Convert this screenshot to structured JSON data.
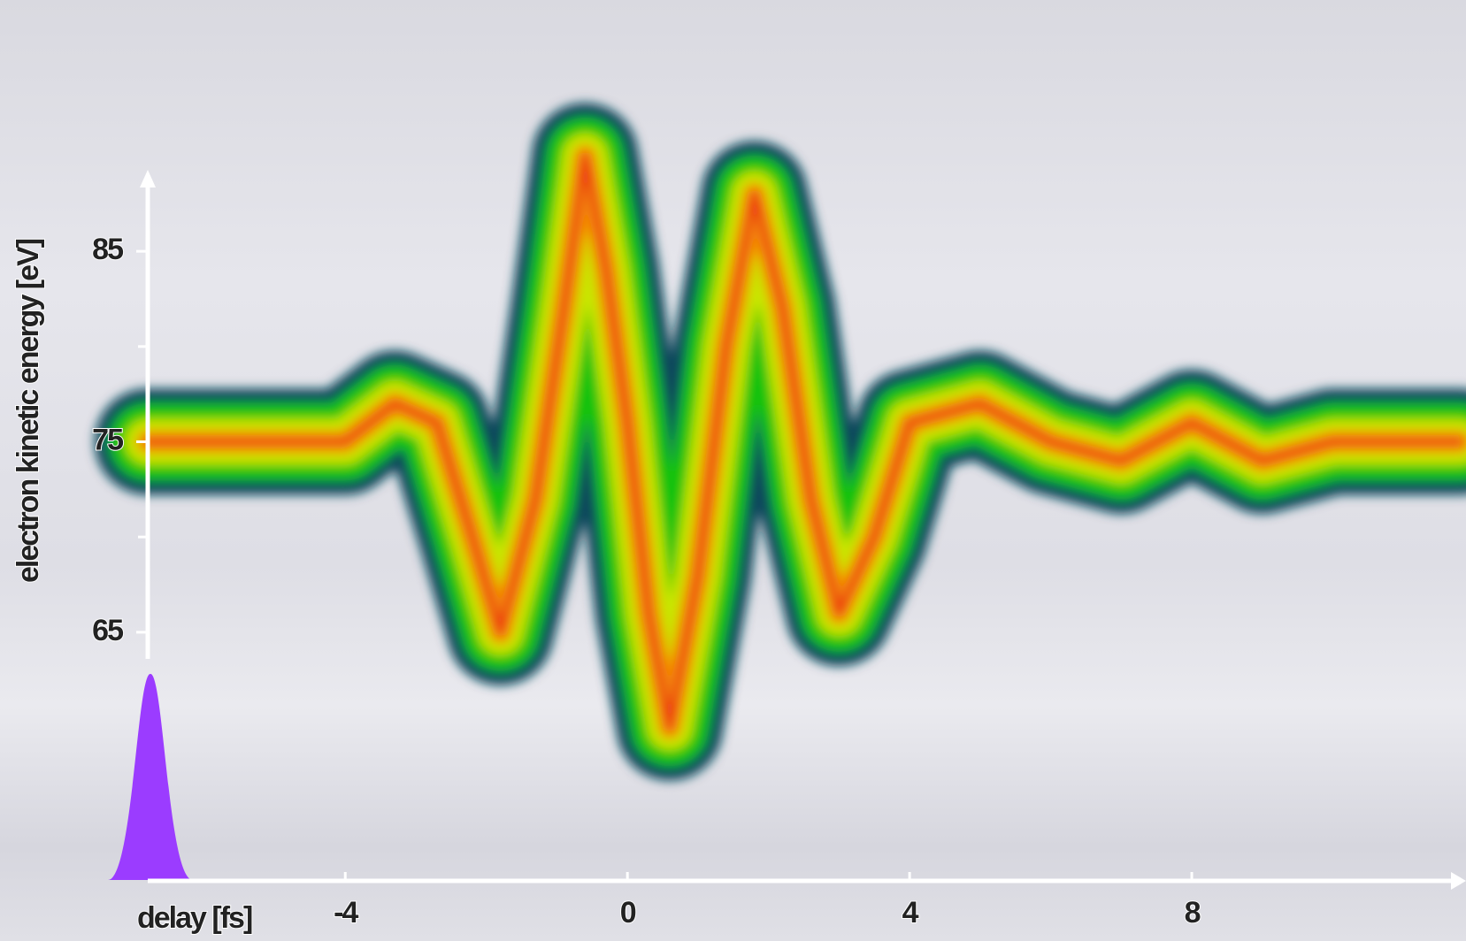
{
  "chart_data": {
    "type": "streak",
    "x_label": "delay [fs]",
    "y_label": "electron kinetic energy [eV]",
    "x": [
      -6.8,
      -6,
      -5,
      -4,
      -3.3,
      -2.7,
      -2.2,
      -1.8,
      -1.3,
      -0.9,
      -0.6,
      -0.3,
      0,
      0.3,
      0.6,
      1,
      1.4,
      1.8,
      2.2,
      2.6,
      3,
      3.5,
      4,
      5,
      6,
      7,
      8,
      9,
      10,
      11,
      11.8
    ],
    "values": [
      75,
      75,
      75,
      75,
      77,
      76,
      70,
      65,
      72,
      82,
      90,
      84,
      76,
      66,
      60,
      68,
      80,
      88,
      82,
      72,
      66,
      70,
      76,
      77,
      75,
      74,
      76,
      74,
      75,
      75,
      75
    ],
    "colors": [
      "#0f4a5c",
      "#12c20f",
      "#c8e600",
      "#ff7a00",
      "#e8141a"
    ],
    "xlim": [
      -6.8,
      11.85
    ],
    "ylim": [
      63.6,
      89
    ],
    "xticks": [
      -4,
      0,
      4,
      8
    ],
    "yticks": [
      65,
      75,
      85
    ],
    "minor_yticks": [
      70,
      80
    ]
  }
}
